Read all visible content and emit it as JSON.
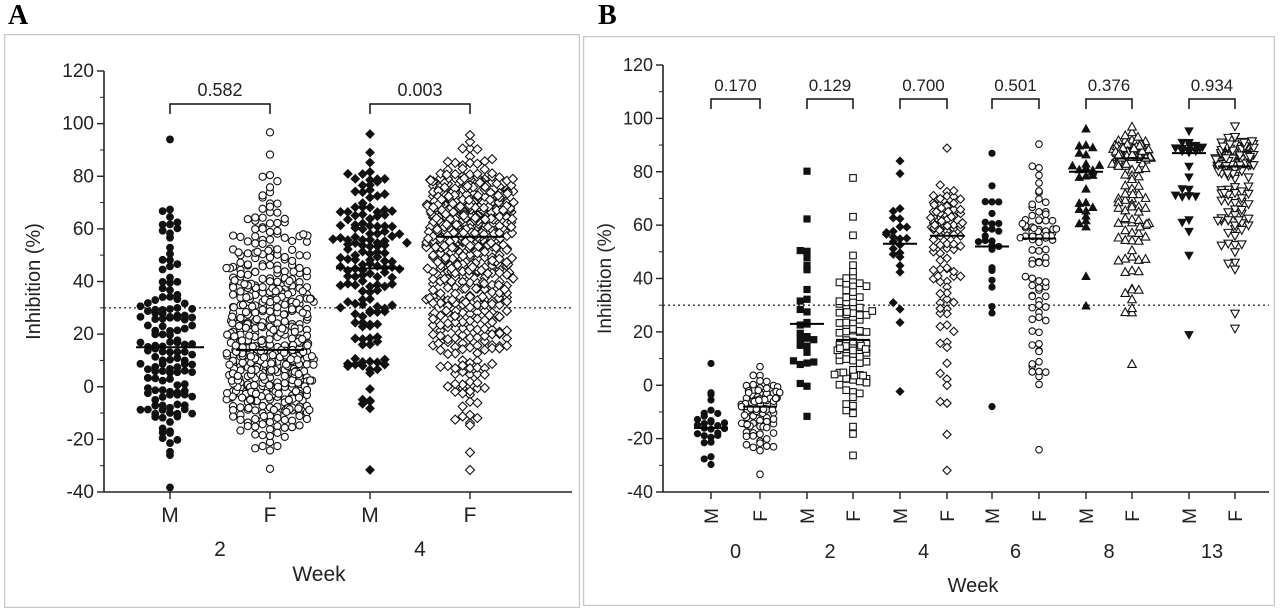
{
  "panels": {
    "A": {
      "label": "A",
      "chart_data": {
        "type": "scatter",
        "title": "",
        "ylabel": "Inhibition (%)",
        "xlabel": "Week",
        "ylim": [
          -40,
          120
        ],
        "yticks": [
          -40,
          -20,
          0,
          20,
          40,
          60,
          80,
          100,
          120
        ],
        "threshold": 30,
        "groups": [
          {
            "week": "2",
            "categories": [
              "M",
              "F"
            ]
          },
          {
            "week": "4",
            "categories": [
              "M",
              "F"
            ]
          }
        ],
        "series": [
          {
            "week": "2",
            "sex": "M",
            "marker": "circle-filled",
            "median": 15,
            "n": 140,
            "min": -38,
            "max": 94
          },
          {
            "week": "2",
            "sex": "F",
            "marker": "circle-open",
            "median": 14,
            "n": 520,
            "min": -31,
            "max": 97
          },
          {
            "week": "4",
            "sex": "M",
            "marker": "diamond-filled",
            "median": 45,
            "n": 150,
            "min": -32,
            "max": 96
          },
          {
            "week": "4",
            "sex": "F",
            "marker": "diamond-open",
            "median": 57,
            "n": 560,
            "min": -32,
            "max": 96
          }
        ],
        "comparisons": [
          {
            "week": "2",
            "p": "0.582"
          },
          {
            "week": "4",
            "p": "0.003"
          }
        ]
      }
    },
    "B": {
      "label": "B",
      "chart_data": {
        "type": "scatter",
        "title": "",
        "ylabel": "Inhibition (%)",
        "xlabel": "Week",
        "ylim": [
          -40,
          120
        ],
        "yticks": [
          -40,
          -20,
          0,
          20,
          40,
          60,
          80,
          100,
          120
        ],
        "threshold": 30,
        "groups": [
          {
            "week": "0",
            "categories": [
              "M",
              "F"
            ]
          },
          {
            "week": "2",
            "categories": [
              "M",
              "F"
            ]
          },
          {
            "week": "4",
            "categories": [
              "M",
              "F"
            ]
          },
          {
            "week": "6",
            "categories": [
              "M",
              "F"
            ]
          },
          {
            "week": "8",
            "categories": [
              "M",
              "F"
            ]
          },
          {
            "week": "13",
            "categories": [
              "M",
              "F"
            ]
          }
        ],
        "series": [
          {
            "week": "0",
            "sex": "M",
            "marker": "circle-filled",
            "median": -16,
            "n": 26,
            "min": -30,
            "max": 8
          },
          {
            "week": "0",
            "sex": "F",
            "marker": "circle-open",
            "median": -8,
            "n": 90,
            "min": -33,
            "max": 7
          },
          {
            "week": "2",
            "sex": "M",
            "marker": "square-filled",
            "median": 23,
            "n": 28,
            "min": -12,
            "max": 80
          },
          {
            "week": "2",
            "sex": "F",
            "marker": "square-open",
            "median": 17,
            "n": 90,
            "min": -26,
            "max": 78
          },
          {
            "week": "4",
            "sex": "M",
            "marker": "diamond-filled",
            "median": 53,
            "n": 24,
            "min": -2,
            "max": 84
          },
          {
            "week": "4",
            "sex": "F",
            "marker": "diamond-open",
            "median": 56,
            "n": 95,
            "min": -32,
            "max": 89
          },
          {
            "week": "6",
            "sex": "M",
            "marker": "circle-filled",
            "median": 52,
            "n": 24,
            "min": -8,
            "max": 87
          },
          {
            "week": "6",
            "sex": "F",
            "marker": "circle-open",
            "median": 55,
            "n": 85,
            "min": -24,
            "max": 90
          },
          {
            "week": "8",
            "sex": "M",
            "marker": "triangle-filled",
            "median": 80,
            "n": 26,
            "min": 30,
            "max": 96
          },
          {
            "week": "8",
            "sex": "F",
            "marker": "triangle-open",
            "median": 85,
            "n": 140,
            "min": 8,
            "max": 97
          },
          {
            "week": "13",
            "sex": "M",
            "marker": "tri-down-filled",
            "median": 87,
            "n": 24,
            "min": 19,
            "max": 95
          },
          {
            "week": "13",
            "sex": "F",
            "marker": "tri-down-open",
            "median": 82,
            "n": 130,
            "min": 21,
            "max": 97
          }
        ],
        "comparisons": [
          {
            "week": "0",
            "p": "0.170"
          },
          {
            "week": "2",
            "p": "0.129"
          },
          {
            "week": "4",
            "p": "0.700"
          },
          {
            "week": "6",
            "p": "0.501"
          },
          {
            "week": "8",
            "p": "0.376"
          },
          {
            "week": "13",
            "p": "0.934"
          }
        ]
      }
    }
  }
}
